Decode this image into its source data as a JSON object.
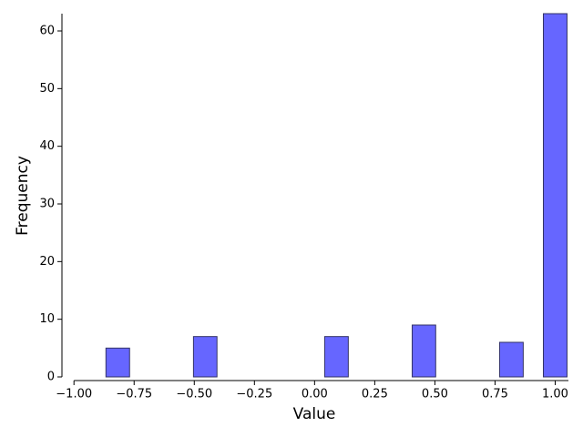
{
  "chart_data": {
    "type": "histogram",
    "xlabel": "Value",
    "ylabel": "Frequency",
    "bins": [
      -0.909,
      -0.727,
      -0.545,
      -0.364,
      -0.182,
      0,
      0.182,
      0.364,
      0.545,
      0.727,
      0.909,
      1.091
    ],
    "values": [
      5,
      0,
      7,
      0,
      0,
      7,
      0,
      9,
      0,
      6,
      63
    ],
    "color": "#6666ff",
    "edgecolor": "#333366",
    "xlim": [
      -1.05,
      1.055
    ],
    "ylim": [
      0,
      63
    ],
    "xticks": [
      {
        "value": -1,
        "label": "−1.00"
      },
      {
        "value": -0.75,
        "label": "−0.75"
      },
      {
        "value": -0.5,
        "label": "−0.50"
      },
      {
        "value": -0.25,
        "label": "−0.25"
      },
      {
        "value": 0,
        "label": "0.00"
      },
      {
        "value": 0.25,
        "label": "0.25"
      },
      {
        "value": 0.5,
        "label": "0.50"
      },
      {
        "value": 0.75,
        "label": "0.75"
      },
      {
        "value": 1,
        "label": "1.00"
      }
    ],
    "yticks": [
      0,
      10,
      20,
      30,
      40,
      50,
      60
    ]
  }
}
